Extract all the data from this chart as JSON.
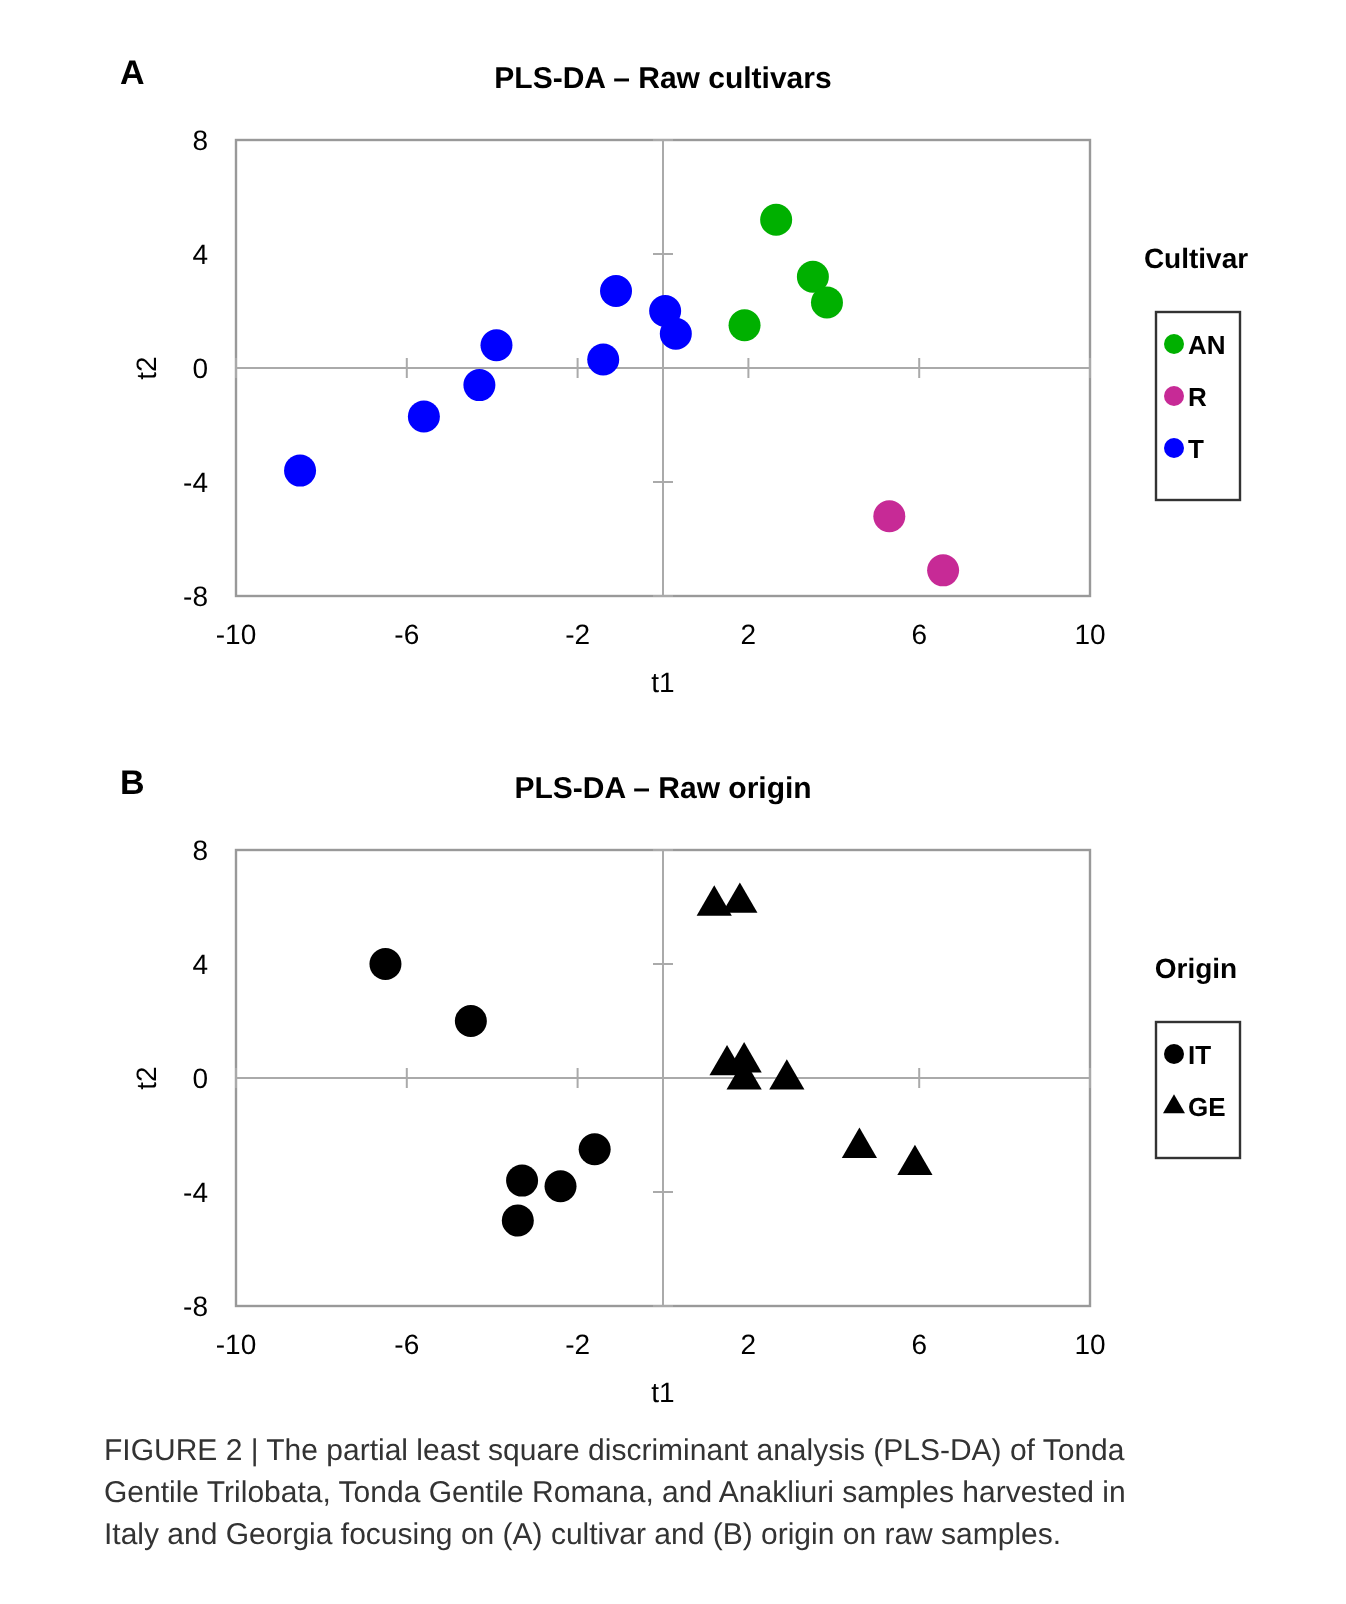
{
  "chart_data": [
    {
      "type": "scatter",
      "title": "PLS-DA – Raw cultivars",
      "xlabel": "t1",
      "ylabel": "t2",
      "legend_title": "Cultivar",
      "annotations": [
        "A"
      ],
      "xlim": [
        -10,
        10
      ],
      "ylim": [
        -8,
        8
      ],
      "xticks": [
        -10,
        -6,
        -2,
        2,
        6,
        10
      ],
      "yticks": [
        -8,
        -4,
        0,
        4,
        8
      ],
      "legend": "right",
      "marker": "circle",
      "series": [
        {
          "name": "AN",
          "color": "#00b000",
          "x": [
            2.65,
            3.51,
            3.84,
            1.91
          ],
          "values": [
            5.2,
            3.2,
            2.3,
            1.5
          ]
        },
        {
          "name": "R",
          "color": "#c72a96",
          "x": [
            5.3,
            6.56
          ],
          "values": [
            -5.2,
            -7.1
          ]
        },
        {
          "name": "T",
          "color": "#0000ff",
          "x": [
            -8.5,
            -5.6,
            -4.3,
            -3.9,
            -1.4,
            -1.1,
            0.05,
            0.3
          ],
          "values": [
            -3.6,
            -1.7,
            -0.6,
            0.8,
            0.3,
            2.7,
            2.0,
            1.2
          ]
        }
      ]
    },
    {
      "type": "scatter",
      "title": "PLS-DA – Raw origin",
      "xlabel": "t1",
      "ylabel": "t2",
      "legend_title": "Origin",
      "annotations": [
        "B",
        "FIGURE 2 | The partial least square discriminant analysis (PLS-DA) of Tonda Gentile Trilobata, Tonda Gentile Romana, and Anakliuri samples harvested in Italy and Georgia focusing on (A) cultivar and (B) origin on raw samples."
      ],
      "xlim": [
        -10,
        10
      ],
      "ylim": [
        -8,
        8
      ],
      "xticks": [
        -10,
        -6,
        -2,
        2,
        6,
        10
      ],
      "yticks": [
        -8,
        -4,
        0,
        4,
        8
      ],
      "legend": "right",
      "series": [
        {
          "name": "IT",
          "color": "#000000",
          "marker": "circle",
          "x": [
            -6.5,
            -4.5,
            -1.6,
            -3.3,
            -2.4,
            -3.4
          ],
          "values": [
            4.0,
            2.0,
            -2.5,
            -3.6,
            -3.8,
            -5.0
          ]
        },
        {
          "name": "GE",
          "color": "#000000",
          "marker": "triangle",
          "x": [
            1.2,
            1.8,
            1.5,
            1.9,
            1.9,
            2.9,
            4.6,
            5.9
          ],
          "values": [
            6.1,
            6.2,
            0.5,
            0.6,
            0.0,
            0.0,
            -2.4,
            -3.0
          ]
        }
      ]
    }
  ]
}
